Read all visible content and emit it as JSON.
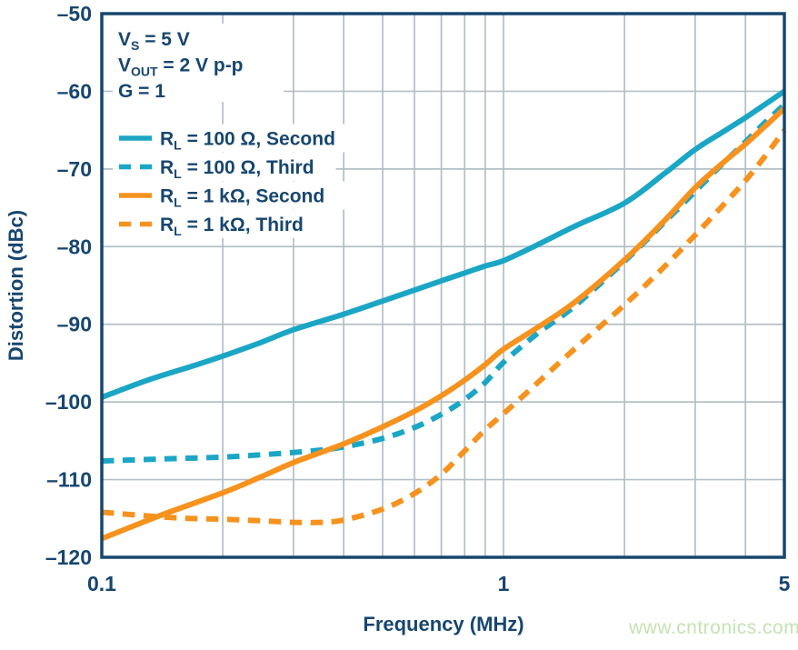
{
  "colors": {
    "navy": "#17466f",
    "teal": "#1ba6c5",
    "orange": "#f6921e",
    "grid": "#b3bfc7",
    "background": "#ffffff",
    "watermark_green": "#c5e2b2"
  },
  "watermark": {
    "text": "www.cntronics.com"
  },
  "chart_data": {
    "type": "line",
    "title": "",
    "xlabel": "Frequency (MHz)",
    "ylabel": "Distortion (dBc)",
    "x_scale": "log",
    "xlim": [
      0.1,
      5
    ],
    "ylim": [
      -120,
      -50
    ],
    "grid": true,
    "legend_position": "top-left",
    "x_ticks": [
      {
        "v": 0.1,
        "label": "0.1"
      },
      {
        "v": 1,
        "label": "1"
      },
      {
        "v": 5,
        "label": "5"
      }
    ],
    "x_gridlines": [
      0.2,
      0.3,
      0.4,
      0.5,
      0.6,
      0.7,
      0.8,
      0.9,
      1,
      2,
      3,
      4
    ],
    "y_ticks": [
      {
        "v": -50,
        "label": "–50"
      },
      {
        "v": -60,
        "label": "–60"
      },
      {
        "v": -70,
        "label": "–70"
      },
      {
        "v": -80,
        "label": "–80"
      },
      {
        "v": -90,
        "label": "–90"
      },
      {
        "v": -100,
        "label": "–100"
      },
      {
        "v": -110,
        "label": "–110"
      },
      {
        "v": -120,
        "label": "–120"
      }
    ],
    "y_gridlines": [
      -60,
      -70,
      -80,
      -90,
      -100,
      -110
    ],
    "annotation": {
      "lines": [
        {
          "pre": "V",
          "sub": "S",
          "post": " = 5 V"
        },
        {
          "pre": "V",
          "sub": "OUT",
          "post": " = 2 V p-p"
        },
        {
          "pre": "G",
          "sub": "",
          "post": " = 1"
        }
      ]
    },
    "series": [
      {
        "id": "rl-100-ohm-second",
        "name": "RL = 100 Ω, Second",
        "label": {
          "pre": "R",
          "sub": "L",
          "post": " = 100 Ω, Second"
        },
        "color": "teal",
        "style": "solid",
        "points": [
          [
            0.1,
            -99.4
          ],
          [
            0.13,
            -97.2
          ],
          [
            0.17,
            -95.3
          ],
          [
            0.2,
            -94.1
          ],
          [
            0.25,
            -92.3
          ],
          [
            0.3,
            -90.7
          ],
          [
            0.4,
            -88.7
          ],
          [
            0.5,
            -87.0
          ],
          [
            0.6,
            -85.6
          ],
          [
            0.7,
            -84.4
          ],
          [
            0.8,
            -83.4
          ],
          [
            0.9,
            -82.5
          ],
          [
            1.0,
            -81.8
          ],
          [
            1.2,
            -79.9
          ],
          [
            1.5,
            -77.4
          ],
          [
            2.0,
            -74.4
          ],
          [
            2.5,
            -70.7
          ],
          [
            3.0,
            -67.5
          ],
          [
            3.5,
            -65.3
          ],
          [
            4.0,
            -63.4
          ],
          [
            4.5,
            -61.6
          ],
          [
            5.0,
            -60.0
          ]
        ]
      },
      {
        "id": "rl-100-ohm-third",
        "name": "RL = 100 Ω, Third",
        "label": {
          "pre": "R",
          "sub": "L",
          "post": " = 100 Ω, Third"
        },
        "color": "teal",
        "style": "dashed",
        "points": [
          [
            0.1,
            -107.6
          ],
          [
            0.15,
            -107.3
          ],
          [
            0.2,
            -107.1
          ],
          [
            0.25,
            -106.8
          ],
          [
            0.3,
            -106.5
          ],
          [
            0.35,
            -106.2
          ],
          [
            0.4,
            -105.8
          ],
          [
            0.5,
            -104.7
          ],
          [
            0.6,
            -103.3
          ],
          [
            0.7,
            -101.6
          ],
          [
            0.8,
            -99.7
          ],
          [
            0.9,
            -97.5
          ],
          [
            1.0,
            -94.9
          ],
          [
            1.2,
            -91.4
          ],
          [
            1.5,
            -87.7
          ],
          [
            2.0,
            -81.9
          ],
          [
            2.5,
            -77.0
          ],
          [
            3.0,
            -72.9
          ],
          [
            3.5,
            -69.4
          ],
          [
            4.0,
            -66.5
          ],
          [
            4.5,
            -63.9
          ],
          [
            5.0,
            -61.7
          ]
        ]
      },
      {
        "id": "rl-1-kohm-second",
        "name": "RL = 1 kΩ, Second",
        "label": {
          "pre": "R",
          "sub": "L",
          "post": " = 1 kΩ, Second"
        },
        "color": "orange",
        "style": "solid",
        "points": [
          [
            0.1,
            -117.6
          ],
          [
            0.14,
            -114.6
          ],
          [
            0.2,
            -111.7
          ],
          [
            0.25,
            -109.6
          ],
          [
            0.3,
            -107.8
          ],
          [
            0.4,
            -105.4
          ],
          [
            0.5,
            -103.2
          ],
          [
            0.6,
            -101.2
          ],
          [
            0.7,
            -99.2
          ],
          [
            0.8,
            -97.2
          ],
          [
            0.9,
            -95.2
          ],
          [
            1.0,
            -93.2
          ],
          [
            1.2,
            -90.6
          ],
          [
            1.5,
            -87.2
          ],
          [
            2.0,
            -81.7
          ],
          [
            2.5,
            -76.8
          ],
          [
            3.0,
            -72.4
          ],
          [
            3.5,
            -69.3
          ],
          [
            4.0,
            -66.8
          ],
          [
            4.5,
            -64.4
          ],
          [
            5.0,
            -62.2
          ]
        ]
      },
      {
        "id": "rl-1-kohm-third",
        "name": "RL = 1 kΩ, Third",
        "label": {
          "pre": "R",
          "sub": "L",
          "post": " = 1 kΩ, Third"
        },
        "color": "orange",
        "style": "dashed",
        "points": [
          [
            0.1,
            -114.2
          ],
          [
            0.15,
            -114.9
          ],
          [
            0.2,
            -115.1
          ],
          [
            0.25,
            -115.3
          ],
          [
            0.3,
            -115.5
          ],
          [
            0.35,
            -115.5
          ],
          [
            0.4,
            -115.2
          ],
          [
            0.5,
            -113.8
          ],
          [
            0.6,
            -111.8
          ],
          [
            0.7,
            -109.3
          ],
          [
            0.8,
            -106.3
          ],
          [
            0.9,
            -103.6
          ],
          [
            1.0,
            -101.5
          ],
          [
            1.2,
            -97.8
          ],
          [
            1.5,
            -93.2
          ],
          [
            2.0,
            -87.5
          ],
          [
            2.5,
            -82.7
          ],
          [
            3.0,
            -78.5
          ],
          [
            3.5,
            -74.8
          ],
          [
            4.0,
            -71.5
          ],
          [
            4.5,
            -68.2
          ],
          [
            5.0,
            -65.0
          ]
        ]
      }
    ]
  }
}
